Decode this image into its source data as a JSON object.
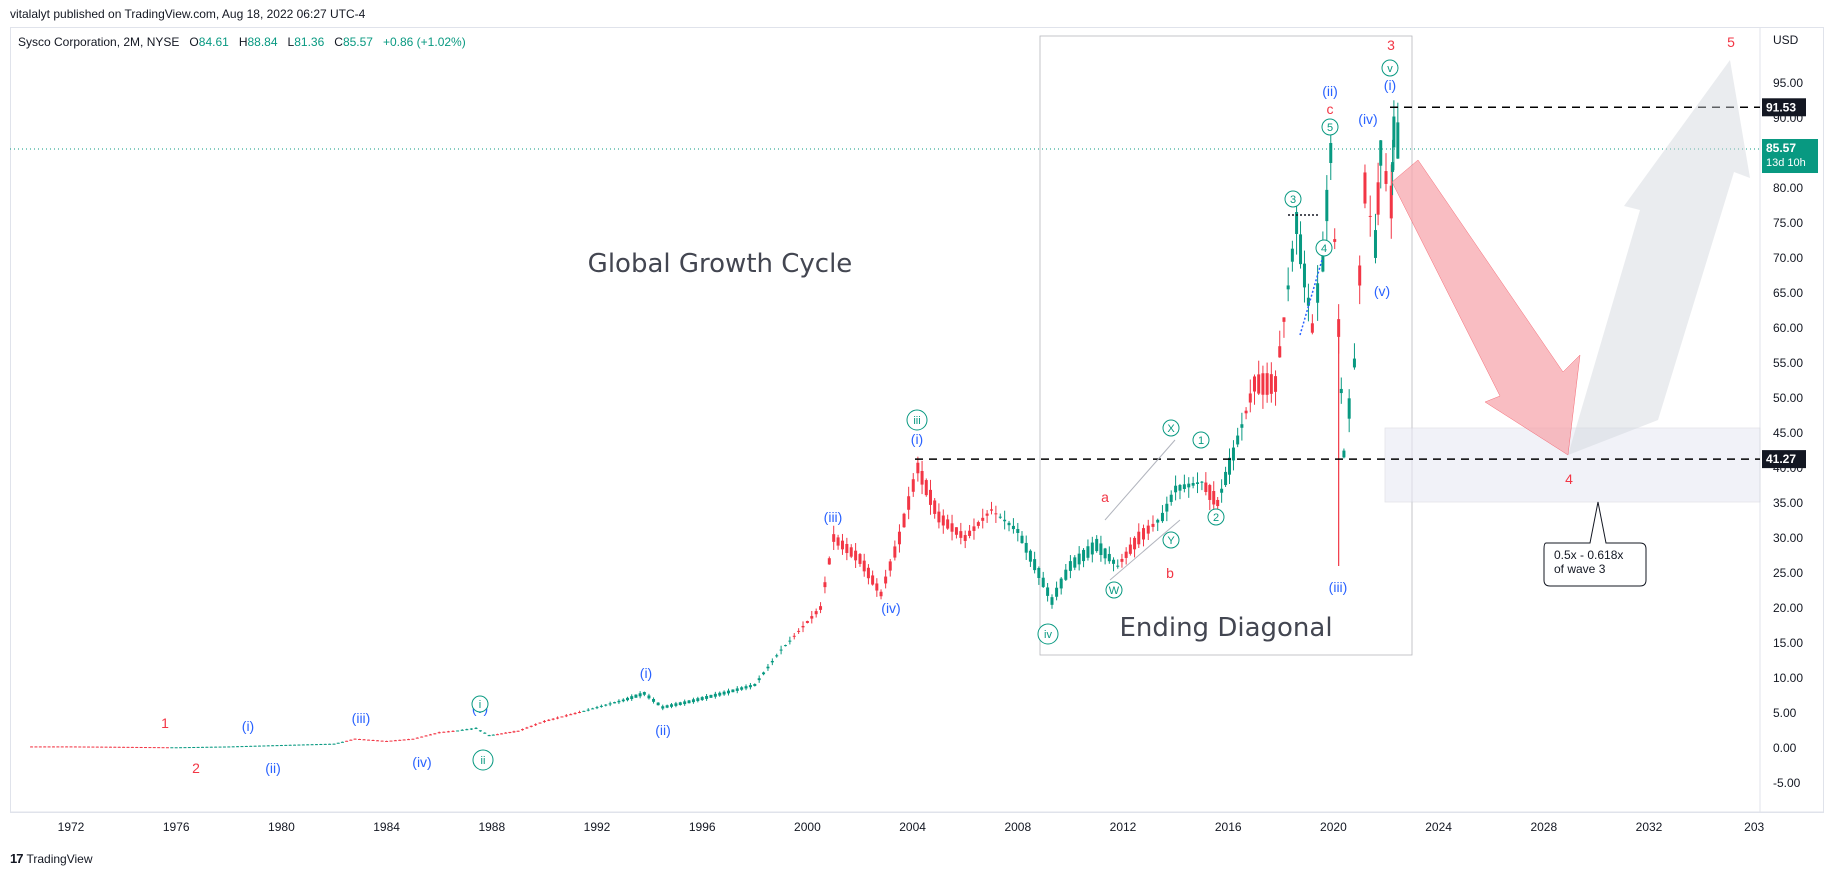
{
  "header": {
    "published": "vitalalyt published on TradingView.com, Aug 18, 2022 06:27 UTC-4"
  },
  "legend": {
    "symbol": "Sysco Corporation, 2M, NYSE",
    "o_label": "O",
    "o_value": "84.61",
    "h_label": "H",
    "h_value": "88.84",
    "l_label": "L",
    "l_value": "81.36",
    "c_label": "C",
    "c_value": "85.57",
    "change": "+0.86 (+1.02%)"
  },
  "footer": {
    "brand": "TradingView",
    "logo": "17"
  },
  "colors": {
    "up": "#089981",
    "down": "#f23645",
    "wave_blue": "#2962ff",
    "wave_red": "#f23645",
    "wave_green": "#089981"
  },
  "chart_data": {
    "type": "candlestick",
    "title": "",
    "x_axis": {
      "ticks": [
        "1972",
        "1976",
        "1980",
        "1984",
        "1988",
        "1992",
        "1996",
        "2000",
        "2004",
        "2008",
        "2012",
        "2016",
        "2020",
        "2024",
        "2028",
        "2032",
        "203"
      ]
    },
    "y_axis": {
      "currency": "USD",
      "range": [
        -7.5,
        100
      ],
      "ticks": [
        "-5.00",
        "0.00",
        "5.00",
        "10.00",
        "15.00",
        "20.00",
        "25.00",
        "30.00",
        "35.00",
        "40.00",
        "45.00",
        "50.00",
        "55.00",
        "60.00",
        "65.00",
        "70.00",
        "75.00",
        "80.00",
        "85.00",
        "90.00",
        "95.00"
      ]
    },
    "series": [
      {
        "values": [
          [
            1970.5,
            0.2
          ],
          [
            1972,
            0.2
          ],
          [
            1974,
            0.15
          ],
          [
            1976,
            0.1
          ],
          [
            1978,
            0.2
          ],
          [
            1980,
            0.4
          ],
          [
            1982,
            0.6
          ],
          [
            1982.8,
            1.3
          ],
          [
            1984,
            1.0
          ],
          [
            1985,
            1.3
          ],
          [
            1986,
            2.2
          ],
          [
            1987.4,
            2.8
          ],
          [
            1987.9,
            1.8
          ],
          [
            1989,
            2.4
          ],
          [
            1990,
            3.8
          ],
          [
            1991,
            4.8
          ],
          [
            1992,
            5.8
          ],
          [
            1993,
            6.8
          ],
          [
            1993.8,
            7.8
          ],
          [
            1994.5,
            5.8
          ],
          [
            1995.5,
            6.6
          ],
          [
            1997,
            8.0
          ],
          [
            1998,
            9.0
          ],
          [
            1999,
            14.0
          ],
          [
            2000,
            18.0
          ],
          [
            2000.5,
            20.0
          ],
          [
            2001,
            30.0
          ],
          [
            2002,
            27.0
          ],
          [
            2002.8,
            22.0
          ],
          [
            2003.5,
            30.0
          ],
          [
            2004.2,
            40.0
          ],
          [
            2005,
            33.0
          ],
          [
            2006,
            30.0
          ],
          [
            2007,
            34.0
          ],
          [
            2008,
            31.0
          ],
          [
            2008.8,
            25.0
          ],
          [
            2009.3,
            21.0
          ],
          [
            2010,
            26.0
          ],
          [
            2011,
            29.0
          ],
          [
            2011.8,
            26.0
          ],
          [
            2012.6,
            30.0
          ],
          [
            2013.5,
            33.0
          ],
          [
            2014,
            37.0
          ],
          [
            2015,
            38.0
          ],
          [
            2015.6,
            35.0
          ],
          [
            2016.2,
            42.0
          ],
          [
            2017,
            52.0
          ],
          [
            2017.8,
            52.0
          ],
          [
            2018.6,
            75.0
          ],
          [
            2019.2,
            60.0
          ],
          [
            2019.6,
            70.0
          ],
          [
            2019.9,
            85.0
          ],
          [
            2020.2,
            60.0
          ],
          [
            2020.4,
            42.0
          ],
          [
            2020.8,
            55.0
          ],
          [
            2021.2,
            80.0
          ],
          [
            2021.6,
            72.0
          ],
          [
            2021.8,
            85.0
          ],
          [
            2022.2,
            78.0
          ],
          [
            2022.3,
            88.0
          ],
          [
            2022.6,
            85.57
          ]
        ]
      }
    ],
    "levels": [
      {
        "price_label": "91.53",
        "value": 91.53,
        "style": "dashed"
      },
      {
        "price_label": "41.27",
        "value": 41.27,
        "style": "dashed"
      },
      {
        "price_label": "85.57",
        "sub_label": "13d 10h",
        "value": 85.57,
        "style": "dotted"
      }
    ],
    "annotations": {
      "big_texts": [
        "Global Growth Cycle",
        "Ending Diagonal"
      ],
      "callout": [
        "0.5x - 0.618x",
        "of wave 3"
      ],
      "red_labels": [
        "1",
        "2",
        "3",
        "4",
        "5",
        "a",
        "b",
        "c"
      ],
      "blue_labels": [
        "(i)",
        "(ii)",
        "(iii)",
        "(iv)",
        "(v)",
        "(i)",
        "(ii)",
        "(iii)",
        "(iv)",
        "(i)",
        "(ii)",
        "(iii)",
        "(iv)",
        "(v)",
        "(i)",
        "(ii)"
      ],
      "green_circled": [
        "i",
        "ii",
        "iii",
        "iv",
        "v",
        "W",
        "X",
        "Y",
        "1",
        "2",
        "3",
        "4",
        "5"
      ]
    }
  }
}
